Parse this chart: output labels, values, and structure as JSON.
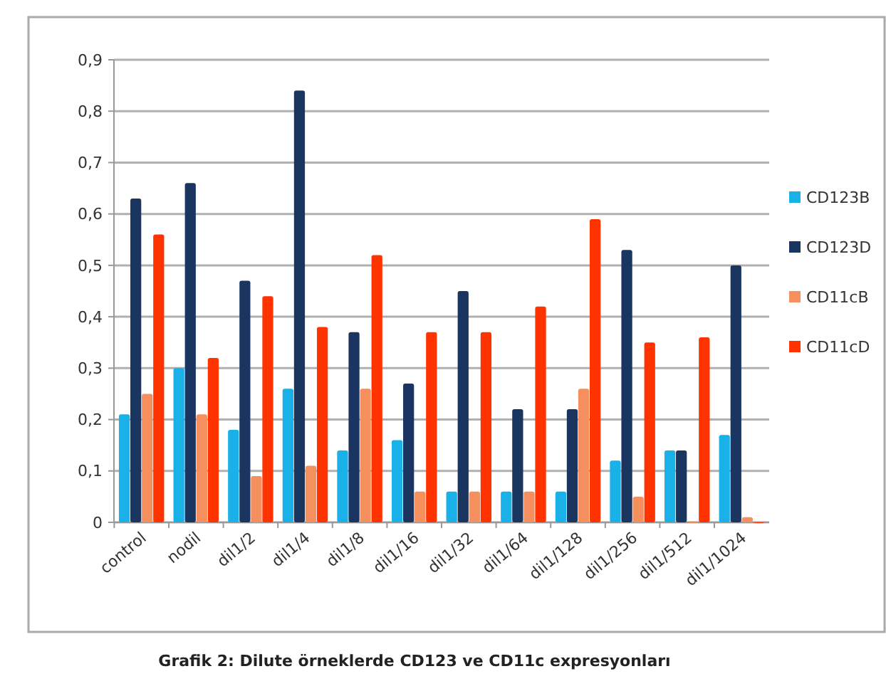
{
  "chart_data": {
    "type": "bar",
    "title": "Grafik 2: Dilute örneklerde   CD123 ve  CD11c expresyonları",
    "categories": [
      "control",
      "nodil",
      "dil1/2",
      "dil1/4",
      "dil1/8",
      "dil1/16",
      "dil1/32",
      "dil1/64",
      "dil1/128",
      "dil1/256",
      "dil1/512",
      "dil1/1024"
    ],
    "series": [
      {
        "name": "CD123B",
        "color": "#1ab0e8",
        "values": [
          0.21,
          0.3,
          0.18,
          0.26,
          0.14,
          0.16,
          0.06,
          0.06,
          0.06,
          0.12,
          0.14,
          0.17
        ]
      },
      {
        "name": "CD123D",
        "color": "#1a3560",
        "values": [
          0.63,
          0.66,
          0.47,
          0.84,
          0.37,
          0.27,
          0.45,
          0.22,
          0.22,
          0.53,
          0.14,
          0.5
        ]
      },
      {
        "name": "CD11cB",
        "color": "#f5905e",
        "values": [
          0.25,
          0.21,
          0.09,
          0.11,
          0.26,
          0.06,
          0.06,
          0.06,
          0.26,
          0.05,
          0,
          0.01
        ]
      },
      {
        "name": "CD11cD",
        "color": "#ff3300",
        "values": [
          0.56,
          0.32,
          0.44,
          0.38,
          0.52,
          0.37,
          0.37,
          0.42,
          0.59,
          0.35,
          0.36,
          0
        ]
      }
    ],
    "ylim": [
      0,
      0.9
    ],
    "yticks": [
      0,
      {
        "value": 0.1,
        "label": "0,1"
      },
      {
        "value": 0.2,
        "label": "0,2"
      },
      {
        "value": 0.3,
        "label": "0,3"
      },
      {
        "value": 0.4,
        "label": "0,4"
      },
      {
        "value": 0.5,
        "label": "0,5"
      },
      {
        "value": 0.6,
        "label": "0,6"
      },
      {
        "value": 0.7,
        "label": "0,7"
      },
      {
        "value": 0.8,
        "label": "0,8"
      },
      {
        "value": 0.9,
        "label": "0,9"
      }
    ],
    "grid": "y",
    "legend": "right"
  }
}
